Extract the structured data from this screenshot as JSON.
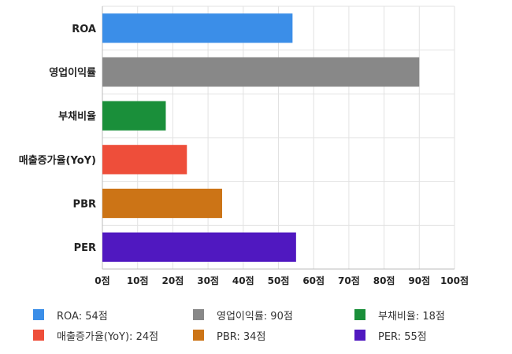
{
  "chart_data": {
    "type": "bar",
    "orientation": "horizontal",
    "categories": [
      "ROA",
      "영업이익률",
      "부채비율",
      "매출증가율(YoY)",
      "PBR",
      "PER"
    ],
    "values": [
      54,
      90,
      18,
      24,
      34,
      55
    ],
    "colors": [
      "#3b8ee8",
      "#888888",
      "#1a8f3a",
      "#ee4e3a",
      "#cc7416",
      "#5018c0"
    ],
    "xlim": [
      0,
      100
    ],
    "xticks": [
      0,
      10,
      20,
      30,
      40,
      50,
      60,
      70,
      80,
      90,
      100
    ],
    "tick_labels": [
      "0점",
      "10점",
      "20점",
      "30점",
      "40점",
      "50점",
      "60점",
      "70점",
      "80점",
      "90점",
      "100점"
    ],
    "grid": true,
    "legend_position": "bottom",
    "legend": [
      "ROA: 54점",
      "영업이익률: 90점",
      "부채비율: 18점",
      "매출증가율(YoY): 24점",
      "PBR: 34점",
      "PER: 55점"
    ]
  }
}
